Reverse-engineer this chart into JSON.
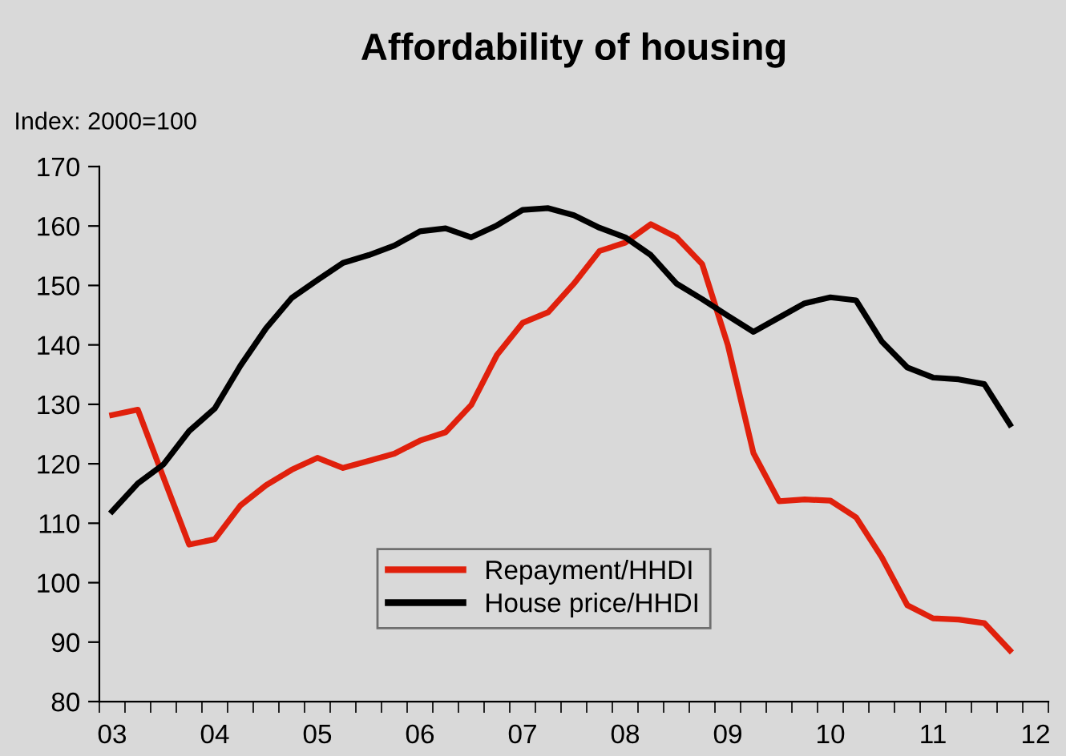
{
  "chart_data": {
    "type": "line",
    "title": "Affordability of housing",
    "ylabel": "Index: 2000=100",
    "categories": [
      "03",
      null,
      null,
      null,
      "04",
      null,
      null,
      null,
      "05",
      null,
      null,
      null,
      "06",
      null,
      null,
      null,
      "07",
      null,
      null,
      null,
      "08",
      null,
      null,
      null,
      "09",
      null,
      null,
      null,
      "10",
      null,
      null,
      null,
      "11",
      null,
      null,
      null,
      "12"
    ],
    "series": [
      {
        "name": "Repayment/HHDI",
        "color": "#e0200c",
        "values": [
          128.2,
          129.1,
          117.7,
          106.4,
          107.3,
          113.0,
          116.4,
          119.0,
          121.0,
          119.3,
          120.5,
          121.7,
          123.9,
          125.3,
          129.9,
          138.3,
          143.7,
          145.5,
          150.3,
          155.8,
          157.2,
          160.3,
          158.1,
          153.6,
          140,
          121.8,
          113.7,
          114.0,
          113.8,
          111.0,
          104.3,
          96.2,
          94.0,
          93.8,
          93.2,
          88.6,
          null
        ]
      },
      {
        "name": "House price/HHDI",
        "color": "#000000",
        "values": [
          112.0,
          116.7,
          119.9,
          125.5,
          129.3,
          136.5,
          142.8,
          147.9,
          150.9,
          153.8,
          155.1,
          156.7,
          159.1,
          159.6,
          158.1,
          160.1,
          162.7,
          163.0,
          161.8,
          159.7,
          158.1,
          155.1,
          150.3,
          147.7,
          144.9,
          142.2,
          144.6,
          147.0,
          148.0,
          147.5,
          140.6,
          136.2,
          134.5,
          134.2,
          133.4,
          126.6,
          null
        ]
      }
    ],
    "ylim": [
      80,
      170
    ],
    "yticks": [
      80,
      90,
      100,
      110,
      120,
      130,
      140,
      150,
      160,
      170
    ],
    "legend": "bottom",
    "marker": "none",
    "line_style": "solid",
    "grid": false
  }
}
